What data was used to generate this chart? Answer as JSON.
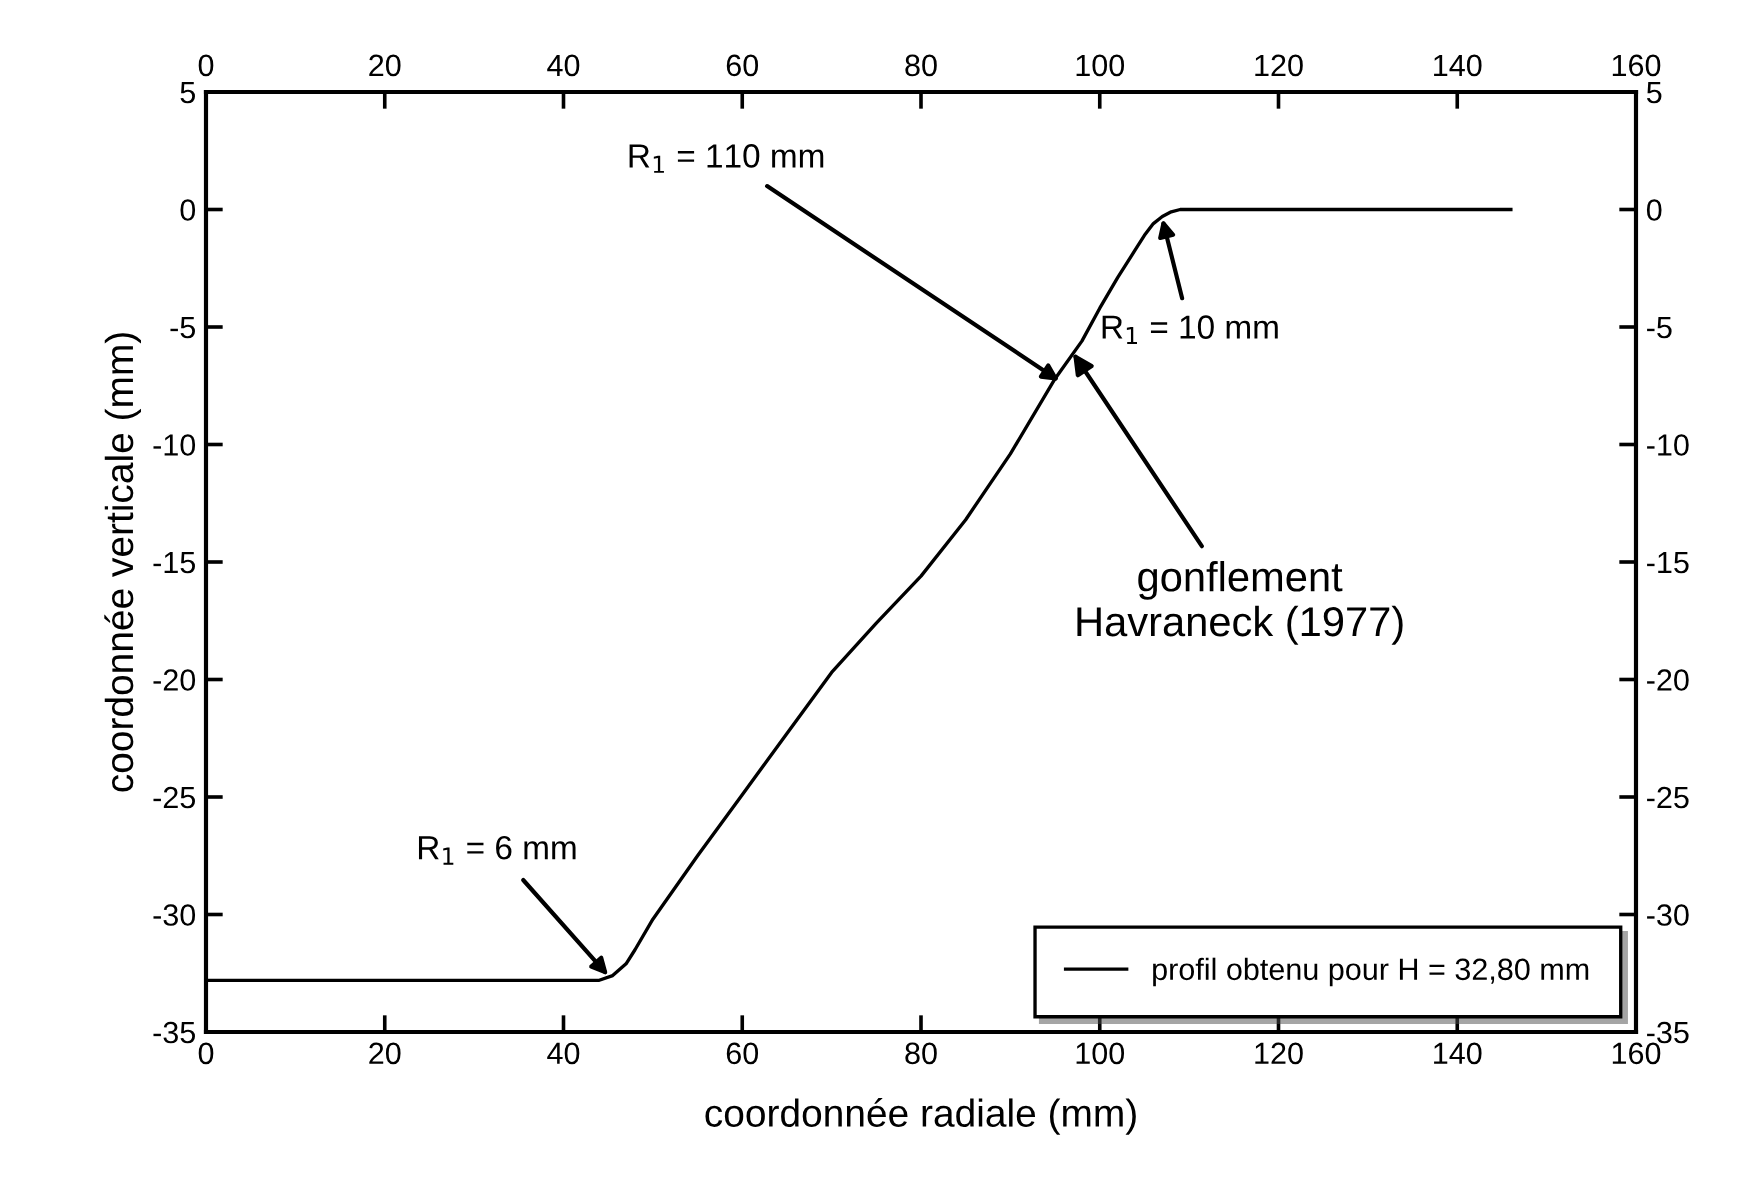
{
  "chart_data": {
    "type": "line",
    "xlabel": "coordonnée radiale (mm)",
    "ylabel": "coordonnée verticale (mm)",
    "xlim": [
      0,
      160
    ],
    "xticks": [
      0,
      20,
      40,
      60,
      80,
      100,
      120,
      140,
      160
    ],
    "x2lim": [
      0,
      160
    ],
    "x2ticks": [
      0,
      20,
      40,
      60,
      80,
      100,
      120,
      140,
      160
    ],
    "ylim": [
      -35,
      5
    ],
    "yticks": [
      -35,
      -30,
      -25,
      -20,
      -15,
      -10,
      -5,
      0,
      5
    ],
    "y2lim": [
      -35,
      5
    ],
    "y2ticks": [
      -35,
      -30,
      -25,
      -20,
      -15,
      -10,
      -5,
      0,
      5
    ],
    "series": [
      {
        "name": "profil obtenu pour H = 32,80 mm",
        "color": "#000000",
        "x": [
          0,
          20,
          40,
          44,
          45.5,
          47,
          48,
          50,
          55,
          60,
          65,
          70,
          75,
          80,
          85,
          90,
          95,
          98,
          100,
          102,
          104,
          105,
          106,
          107,
          108,
          109,
          110,
          120,
          130,
          146
        ],
        "values": [
          -32.8,
          -32.8,
          -32.8,
          -32.8,
          -32.6,
          -32.1,
          -31.5,
          -30.2,
          -27.5,
          -24.9,
          -22.3,
          -19.7,
          -17.6,
          -15.6,
          -13.2,
          -10.4,
          -7.2,
          -5.6,
          -4.2,
          -2.9,
          -1.7,
          -1.1,
          -0.6,
          -0.3,
          -0.1,
          0,
          0,
          0,
          0,
          0
        ]
      }
    ],
    "annotations": [
      {
        "text": "R$_{1}$ = 110 mm",
        "x": 95.5,
        "y": -7.3
      },
      {
        "text": "R$_{1}$ = 10 mm",
        "x": 107,
        "y": -0.4
      },
      {
        "text": "gonflement\nHavraneck (1977)",
        "x": 97,
        "y": -6.1
      },
      {
        "text": "R$_{1}$ = 6 mm",
        "x": 45,
        "y": -32.6
      }
    ],
    "legend": "bottom right",
    "line_style": "solid",
    "marker": "none",
    "grid": false
  }
}
